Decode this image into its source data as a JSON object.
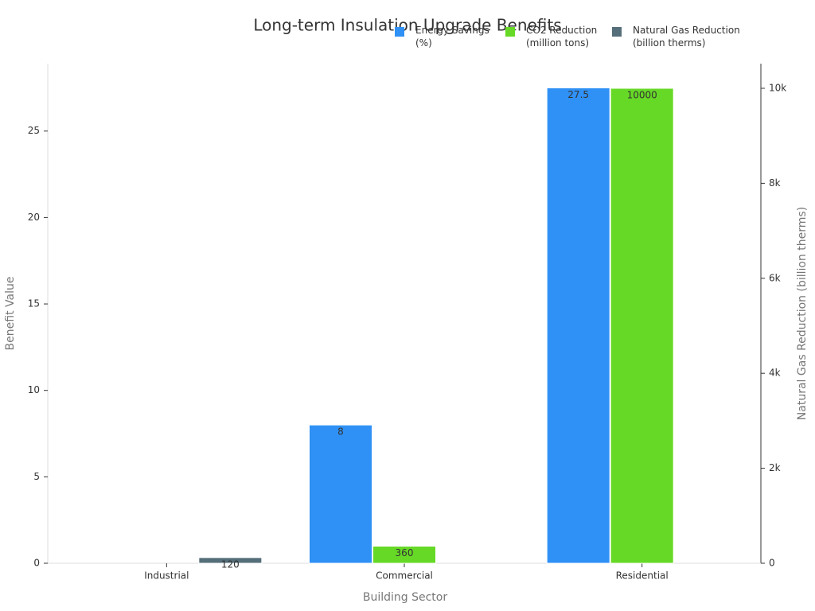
{
  "chart_data": {
    "type": "bar",
    "title": "Long-term Insulation Upgrade Benefits",
    "x_label": "Building Sector",
    "y_label": "Benefit Value",
    "y2_label": "Natural Gas Reduction (billion therms)",
    "categories": [
      "Industrial",
      "Commercial",
      "Residential"
    ],
    "series": [
      {
        "name": "Energy Savings (%)",
        "color": "#2f91f5",
        "values": [
          null,
          8,
          27.5
        ]
      },
      {
        "name": "CO2 Reduction (million tons)",
        "color": "#66d926",
        "values": [
          null,
          360,
          10000
        ],
        "axis": "y2"
      },
      {
        "name": "Natural Gas Reduction (billion therms)",
        "color": "#546e7a",
        "values": [
          120,
          null,
          null
        ],
        "axis": "y2"
      }
    ],
    "ylim": [
      0,
      28.9
    ],
    "yticks": [
      0,
      5,
      10,
      15,
      20,
      25
    ],
    "y2lim": [
      0,
      10519
    ],
    "y2ticks": [
      0,
      {
        "value": 2000,
        "label": "2k"
      },
      {
        "value": 4000,
        "label": "4k"
      },
      {
        "value": 6000,
        "label": "6k"
      },
      {
        "value": 8000,
        "label": "8k"
      },
      {
        "value": 10000,
        "label": "10k"
      }
    ],
    "legend": "top-right",
    "grid": false
  }
}
